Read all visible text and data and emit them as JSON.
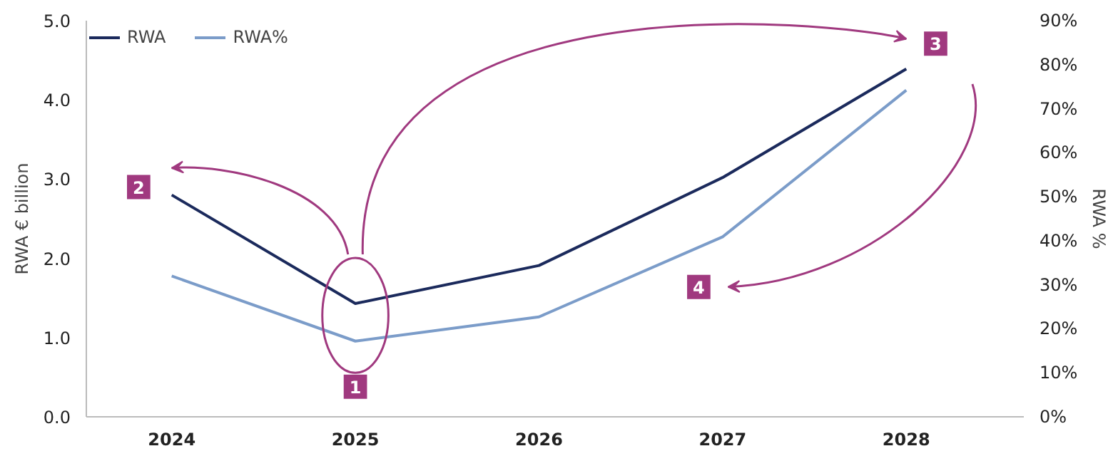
{
  "chart_data": {
    "type": "line",
    "categories": [
      "2024",
      "2025",
      "2026",
      "2027",
      "2028"
    ],
    "ylabel": "RWA € billion",
    "y2label": "RWA %",
    "series": [
      {
        "name": "RWA",
        "color": "#1b2a5c",
        "values": [
          2.8,
          1.43,
          1.91,
          3.02,
          4.39
        ]
      },
      {
        "name": "RWA%",
        "color": "#7b9cc9",
        "values": [
          32,
          17.2,
          22.7,
          40.9,
          74.2
        ],
        "axis": "y2"
      }
    ],
    "ylim": [
      0,
      5
    ],
    "yticks": [
      {
        "value": 0,
        "label": "0.0"
      },
      {
        "value": 1,
        "label": "1.0"
      },
      {
        "value": 2,
        "label": "2.0"
      },
      {
        "value": 3,
        "label": "3.0"
      },
      {
        "value": 4,
        "label": "4.0"
      },
      {
        "value": 5,
        "label": "5.0"
      }
    ],
    "y2lim": [
      0,
      90
    ],
    "y2ticks": [
      {
        "value": 0,
        "label": "0%"
      },
      {
        "value": 10,
        "label": "10%"
      },
      {
        "value": 20,
        "label": "20%"
      },
      {
        "value": 30,
        "label": "30%"
      },
      {
        "value": 40,
        "label": "40%"
      },
      {
        "value": 50,
        "label": "50%"
      },
      {
        "value": 60,
        "label": "60%"
      },
      {
        "value": 70,
        "label": "70%"
      },
      {
        "value": 80,
        "label": "80%"
      },
      {
        "value": 90,
        "label": "90%"
      }
    ],
    "annotations": [
      "1",
      "2",
      "3",
      "4"
    ],
    "grid": false,
    "legend": "top left",
    "marker": "none",
    "line_style": "solid"
  }
}
